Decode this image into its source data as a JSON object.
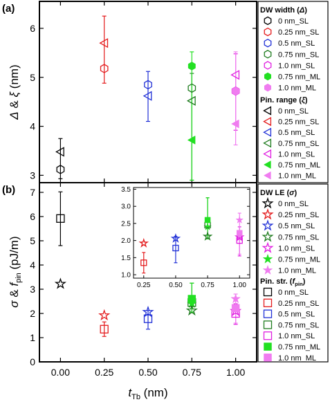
{
  "chart_data": [
    {
      "type": "scatter",
      "panel_label": "(a)",
      "ylabel_html_parts": [
        "Δ & ξ (nm)"
      ],
      "ylim": [
        2.85,
        6.55
      ],
      "yticks": [
        3,
        4,
        5,
        6
      ],
      "x_categories": [
        0.0,
        0.25,
        0.5,
        0.75,
        1.0
      ],
      "legend_groups": [
        {
          "title": "DW width (Δ)",
          "entries": [
            {
              "name": "0 nm_SL",
              "color": "#000000",
              "marker": "hexagon-open"
            },
            {
              "name": "0.25 nm_SL",
              "color": "#e41a1c",
              "marker": "hexagon-open"
            },
            {
              "name": "0.5 nm_SL",
              "color": "#1f2fd6",
              "marker": "hexagon-open"
            },
            {
              "name": "0.75 nm_SL",
              "color": "#1e7b1e",
              "marker": "hexagon-open"
            },
            {
              "name": "1.0 nm_SL",
              "color": "#e01ee0",
              "marker": "hexagon-open"
            },
            {
              "name": "0.75 nm_ML",
              "color": "#22e022",
              "marker": "hexagon-filled"
            },
            {
              "name": "1.0 nm_ML",
              "color": "#f07cf0",
              "marker": "hexagon-filled"
            }
          ]
        },
        {
          "title": "Pin. range (ξ)",
          "entries": [
            {
              "name": "0 nm_SL",
              "color": "#000000",
              "marker": "triangle-left-open"
            },
            {
              "name": "0.25 nm_SL",
              "color": "#e41a1c",
              "marker": "triangle-left-open"
            },
            {
              "name": "0.5 nm_SL",
              "color": "#1f2fd6",
              "marker": "triangle-left-open"
            },
            {
              "name": "0.75 nm_SL",
              "color": "#1e7b1e",
              "marker": "triangle-left-open"
            },
            {
              "name": "1.0 nm_SL",
              "color": "#e01ee0",
              "marker": "triangle-left-open"
            },
            {
              "name": "0.75 nm_ML",
              "color": "#22e022",
              "marker": "triangle-left-filled"
            },
            {
              "name": "1.0 nm_ML",
              "color": "#f07cf0",
              "marker": "triangle-left-filled"
            }
          ]
        }
      ],
      "series": [
        {
          "name": "Δ 0 nm_SL",
          "x": 0.0,
          "y": 3.12,
          "yerr": 0.0,
          "marker": "hexagon-open",
          "color": "#000000"
        },
        {
          "name": "Δ 0.25 nm_SL",
          "x": 0.25,
          "y": 5.18,
          "yerr": 0.0,
          "marker": "hexagon-open",
          "color": "#e41a1c"
        },
        {
          "name": "Δ 0.5 nm_SL",
          "x": 0.5,
          "y": 4.85,
          "yerr": 0.0,
          "marker": "hexagon-open",
          "color": "#1f2fd6"
        },
        {
          "name": "Δ 0.75 nm_SL",
          "x": 0.75,
          "y": 4.78,
          "yerr": 0.0,
          "marker": "hexagon-open",
          "color": "#1e7b1e"
        },
        {
          "name": "Δ 1.0 nm_SL",
          "x": 1.0,
          "y": 4.72,
          "yerr": 0.0,
          "marker": "hexagon-open",
          "color": "#e01ee0"
        },
        {
          "name": "Δ 0.75 nm_ML",
          "x": 0.75,
          "y": 5.23,
          "yerr": 0.0,
          "marker": "hexagon-filled",
          "color": "#22e022"
        },
        {
          "name": "Δ 1.0 nm_ML",
          "x": 1.0,
          "y": 4.72,
          "yerr": 0.0,
          "marker": "hexagon-filled",
          "color": "#f07cf0"
        },
        {
          "name": "ξ 0 nm_SL",
          "x": 0.0,
          "y": 3.48,
          "yerr_low": 2.93,
          "yerr_high": 3.75,
          "marker": "triangle-left-open",
          "color": "#000000"
        },
        {
          "name": "ξ 0.25 nm_SL",
          "x": 0.25,
          "y": 5.7,
          "yerr_low": 4.88,
          "yerr_high": 6.25,
          "marker": "triangle-left-open",
          "color": "#e41a1c"
        },
        {
          "name": "ξ 0.5 nm_SL",
          "x": 0.5,
          "y": 4.62,
          "yerr_low": 4.1,
          "yerr_high": 5.12,
          "marker": "triangle-left-open",
          "color": "#1f2fd6"
        },
        {
          "name": "ξ 0.75 nm_SL",
          "x": 0.75,
          "y": 4.52,
          "yerr_low": 2.9,
          "yerr_high": 5.08,
          "marker": "triangle-left-open",
          "color": "#1e7b1e"
        },
        {
          "name": "ξ 1.0 nm_SL",
          "x": 1.0,
          "y": 5.05,
          "yerr_low": 3.92,
          "yerr_high": 5.48,
          "marker": "triangle-left-open",
          "color": "#e01ee0"
        },
        {
          "name": "ξ 0.75 nm_ML",
          "x": 0.75,
          "y": 3.72,
          "yerr_low": 2.9,
          "yerr_high": 5.52,
          "marker": "triangle-left-filled",
          "color": "#22e022"
        },
        {
          "name": "ξ 1.0 nm_ML",
          "x": 1.0,
          "y": 4.05,
          "yerr_low": 3.62,
          "yerr_high": 5.52,
          "marker": "triangle-left-filled",
          "color": "#f07cf0"
        }
      ]
    },
    {
      "type": "scatter",
      "panel_label": "(b)",
      "ylim": [
        0,
        7.4
      ],
      "yticks": [
        0,
        1,
        2,
        3,
        4,
        5,
        6,
        7
      ],
      "xlim": [
        -0.12,
        1.12
      ],
      "xticks": [
        "0.00",
        "0.25",
        "0.50",
        "0.75",
        "1.00"
      ],
      "xticks_values": [
        0.0,
        0.25,
        0.5,
        0.75,
        1.0
      ],
      "legend_groups": [
        {
          "title": "DW LE (σ)",
          "entries": [
            {
              "name": "0 nm_SL",
              "color": "#000000",
              "marker": "star-open"
            },
            {
              "name": "0.25 nm_SL",
              "color": "#e41a1c",
              "marker": "star-open"
            },
            {
              "name": "0.5 nm_SL",
              "color": "#1f2fd6",
              "marker": "star-open"
            },
            {
              "name": "0.75 nm_SL",
              "color": "#1e7b1e",
              "marker": "star-open"
            },
            {
              "name": "1.0 nm_SL",
              "color": "#e01ee0",
              "marker": "star-open"
            },
            {
              "name": "0.75 nm_ML",
              "color": "#22e022",
              "marker": "star-filled"
            },
            {
              "name": "1.0 nm_ML",
              "color": "#f07cf0",
              "marker": "star-filled"
            }
          ]
        },
        {
          "title": "Pin. str. (fpin)",
          "entries": [
            {
              "name": "0 nm_SL",
              "color": "#000000",
              "marker": "square-open"
            },
            {
              "name": "0.25 nm_SL",
              "color": "#e41a1c",
              "marker": "square-open"
            },
            {
              "name": "0.5 nm_SL",
              "color": "#1f2fd6",
              "marker": "square-open"
            },
            {
              "name": "0.75 nm_SL",
              "color": "#1e7b1e",
              "marker": "square-open"
            },
            {
              "name": "1.0 nm_SL",
              "color": "#e01ee0",
              "marker": "square-open"
            },
            {
              "name": "0.75 nm_ML",
              "color": "#22e022",
              "marker": "square-filled"
            },
            {
              "name": "1.0 nm_ML",
              "color": "#f07cf0",
              "marker": "square-filled"
            }
          ]
        }
      ],
      "series": [
        {
          "name": "σ 0 nm_SL",
          "x": 0.0,
          "y": 3.22,
          "marker": "star-open",
          "color": "#000000"
        },
        {
          "name": "σ 0.25 nm_SL",
          "x": 0.25,
          "y": 1.92,
          "marker": "star-open",
          "color": "#e41a1c"
        },
        {
          "name": "σ 0.5 nm_SL",
          "x": 0.5,
          "y": 2.06,
          "marker": "star-open",
          "color": "#1f2fd6"
        },
        {
          "name": "σ 0.75 nm_SL",
          "x": 0.75,
          "y": 2.12,
          "marker": "star-open",
          "color": "#1e7b1e"
        },
        {
          "name": "σ 1.0 nm_SL",
          "x": 1.0,
          "y": 2.1,
          "marker": "star-open",
          "color": "#e01ee0"
        },
        {
          "name": "σ 0.75 nm_ML",
          "x": 0.75,
          "y": 2.4,
          "marker": "star-filled",
          "color": "#22e022"
        },
        {
          "name": "σ 1.0 nm_ML",
          "x": 1.0,
          "y": 2.6,
          "marker": "star-filled",
          "color": "#f07cf0"
        },
        {
          "name": "fpin 0 nm_SL",
          "x": 0.0,
          "y": 5.92,
          "yerr_low": 4.8,
          "yerr_high": 7.02,
          "marker": "square-open",
          "color": "#000000"
        },
        {
          "name": "fpin 0.25 nm_SL",
          "x": 0.25,
          "y": 1.35,
          "yerr_low": 1.05,
          "yerr_high": 1.65,
          "marker": "square-open",
          "color": "#e41a1c"
        },
        {
          "name": "fpin 0.5 nm_SL",
          "x": 0.5,
          "y": 1.78,
          "yerr_low": 1.35,
          "yerr_high": 2.12,
          "marker": "square-open",
          "color": "#1f2fd6"
        },
        {
          "name": "fpin 0.75 nm_SL",
          "x": 0.75,
          "y": 2.45,
          "yerr_low": 2.05,
          "yerr_high": 3.25,
          "marker": "square-open",
          "color": "#1e7b1e"
        },
        {
          "name": "fpin 1.0 nm_SL",
          "x": 1.0,
          "y": 2.0,
          "yerr_low": 1.55,
          "yerr_high": 2.4,
          "marker": "square-open",
          "color": "#e01ee0"
        },
        {
          "name": "fpin 0.75 nm_ML",
          "x": 0.75,
          "y": 2.6,
          "yerr_low": 2.05,
          "yerr_high": 3.25,
          "marker": "square-filled",
          "color": "#22e022"
        },
        {
          "name": "fpin 1.0 nm_ML",
          "x": 1.0,
          "y": 2.22,
          "yerr_low": 1.6,
          "yerr_high": 2.8,
          "marker": "square-filled",
          "color": "#f07cf0"
        }
      ],
      "inset": {
        "xticks": [
          "0.25",
          "0.50",
          "0.75",
          "1.00"
        ],
        "xticks_values": [
          0.25,
          0.5,
          0.75,
          1.0
        ],
        "xlim": [
          0.17,
          1.08
        ],
        "yticks": [
          "1.0",
          "1.5",
          "2.0",
          "2.5",
          "3.0",
          "3.5"
        ],
        "yticks_values": [
          1.0,
          1.5,
          2.0,
          2.5,
          3.0,
          3.5
        ],
        "ylim": [
          0.9,
          3.55
        ]
      }
    }
  ],
  "xlabel_main": "t",
  "xlabel_sub": "Tb",
  "xlabel_unit": " (nm)",
  "panel_b_ylabel": {
    "sym1": "σ",
    "mid": " & ",
    "sym2": "f",
    "sub2": "pin",
    "unit": " (pJ/m)"
  },
  "panel_a_ylabel": {
    "sym1": "Δ",
    "mid": " & ",
    "sym2": "ξ",
    "unit": " (nm)"
  }
}
